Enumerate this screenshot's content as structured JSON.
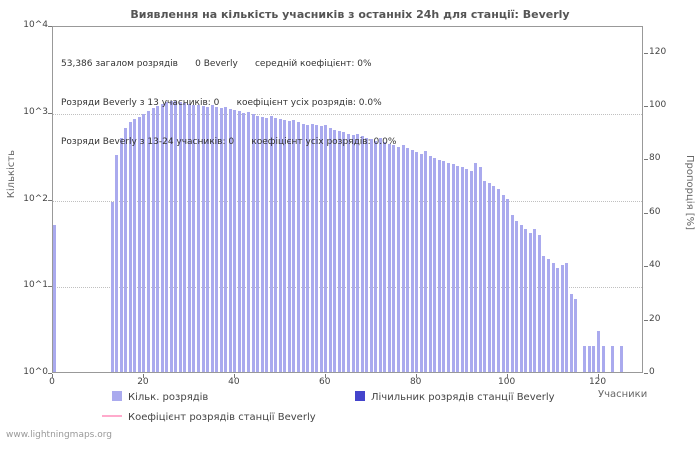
{
  "title": "Виявлення на кількість учасників з останніх 24h для станції: Beverly",
  "watermark": "www.lightningmaps.org",
  "annotation": {
    "line1": "53,386 загалом розрядів      0 Beverly      середній коефіцієнт: 0%",
    "line2": "Розряди Beverly з 13 учасників: 0      коефіцієнт усіх розрядів: 0.0%",
    "line3": "Розряди Beverly з 13-24 учасників: 0      коефіцієнт усіх розрядів: 0.0%"
  },
  "axes": {
    "left_label": "Кількість",
    "right_label": "Пропорція [%]",
    "x_label": "Учасники",
    "left_ticks": [
      "10^0",
      "10^1",
      "10^2",
      "10^3",
      "10^4"
    ],
    "right_ticks": [
      0,
      20,
      40,
      60,
      80,
      100,
      120
    ],
    "x_ticks": [
      0,
      20,
      40,
      60,
      80,
      100,
      120
    ]
  },
  "legend": [
    {
      "label": "Кільк. розрядів",
      "color": "#aaaaee",
      "type": "box"
    },
    {
      "label": "Лічильник розрядів станції Beverly",
      "color": "#4444cc",
      "type": "box"
    },
    {
      "label": "Коефіцієнт розрядів станції Beverly",
      "color": "#ffaacc",
      "type": "line"
    }
  ],
  "chart_data": {
    "type": "bar",
    "title": "Виявлення на кількість учасників з останніх 24h для станції: Beverly",
    "xlabel": "Учасники",
    "ylabel": "Кількість",
    "ylabel_right": "Пропорція [%]",
    "y_scale": "log10",
    "y_range": [
      1,
      10000
    ],
    "x_range": [
      0,
      130
    ],
    "right_axis_range": [
      0,
      130
    ],
    "bar_color": "#aaaaee",
    "grid": "horizontal-decades",
    "legend_position": "bottom",
    "series": [
      {
        "name": "Кільк. розрядів",
        "points": [
          [
            0,
            50
          ],
          [
            13,
            90
          ],
          [
            14,
            320
          ],
          [
            15,
            500
          ],
          [
            16,
            650
          ],
          [
            17,
            760
          ],
          [
            18,
            820
          ],
          [
            19,
            880
          ],
          [
            20,
            950
          ],
          [
            21,
            1020
          ],
          [
            22,
            1100
          ],
          [
            23,
            1160
          ],
          [
            24,
            1240
          ],
          [
            25,
            1300
          ],
          [
            26,
            1340
          ],
          [
            27,
            1320
          ],
          [
            28,
            1300
          ],
          [
            29,
            1270
          ],
          [
            30,
            1240
          ],
          [
            31,
            1210
          ],
          [
            32,
            1190
          ],
          [
            33,
            1170
          ],
          [
            34,
            1140
          ],
          [
            35,
            1190
          ],
          [
            36,
            1140
          ],
          [
            37,
            1100
          ],
          [
            38,
            1150
          ],
          [
            39,
            1090
          ],
          [
            40,
            1060
          ],
          [
            41,
            1010
          ],
          [
            42,
            960
          ],
          [
            43,
            1000
          ],
          [
            44,
            950
          ],
          [
            45,
            900
          ],
          [
            46,
            870
          ],
          [
            47,
            850
          ],
          [
            48,
            890
          ],
          [
            49,
            850
          ],
          [
            50,
            820
          ],
          [
            51,
            800
          ],
          [
            52,
            780
          ],
          [
            53,
            800
          ],
          [
            54,
            760
          ],
          [
            55,
            730
          ],
          [
            56,
            700
          ],
          [
            57,
            720
          ],
          [
            58,
            700
          ],
          [
            59,
            680
          ],
          [
            60,
            700
          ],
          [
            61,
            650
          ],
          [
            62,
            620
          ],
          [
            63,
            600
          ],
          [
            64,
            580
          ],
          [
            65,
            560
          ],
          [
            66,
            540
          ],
          [
            67,
            560
          ],
          [
            68,
            520
          ],
          [
            69,
            500
          ],
          [
            70,
            480
          ],
          [
            71,
            460
          ],
          [
            72,
            500
          ],
          [
            73,
            450
          ],
          [
            74,
            430
          ],
          [
            75,
            410
          ],
          [
            76,
            390
          ],
          [
            77,
            410
          ],
          [
            78,
            380
          ],
          [
            79,
            360
          ],
          [
            80,
            340
          ],
          [
            81,
            330
          ],
          [
            82,
            350
          ],
          [
            83,
            310
          ],
          [
            84,
            290
          ],
          [
            85,
            280
          ],
          [
            86,
            270
          ],
          [
            87,
            260
          ],
          [
            88,
            250
          ],
          [
            89,
            240
          ],
          [
            90,
            230
          ],
          [
            91,
            220
          ],
          [
            92,
            210
          ],
          [
            93,
            260
          ],
          [
            94,
            230
          ],
          [
            95,
            160
          ],
          [
            96,
            150
          ],
          [
            97,
            140
          ],
          [
            98,
            130
          ],
          [
            99,
            110
          ],
          [
            100,
            100
          ],
          [
            101,
            65
          ],
          [
            102,
            55
          ],
          [
            103,
            50
          ],
          [
            104,
            45
          ],
          [
            105,
            40
          ],
          [
            106,
            45
          ],
          [
            107,
            38
          ],
          [
            108,
            22
          ],
          [
            109,
            20
          ],
          [
            110,
            18
          ],
          [
            111,
            16
          ],
          [
            112,
            17
          ],
          [
            113,
            18
          ],
          [
            114,
            8
          ],
          [
            115,
            7
          ],
          [
            117,
            2
          ],
          [
            118,
            2
          ],
          [
            119,
            2
          ],
          [
            120,
            3
          ],
          [
            121,
            2
          ],
          [
            123,
            2
          ],
          [
            125,
            2
          ]
        ]
      },
      {
        "name": "Лічильник розрядів станції Beverly",
        "points": []
      },
      {
        "name": "Коефіцієнт розрядів станції Beverly",
        "points": []
      }
    ]
  }
}
